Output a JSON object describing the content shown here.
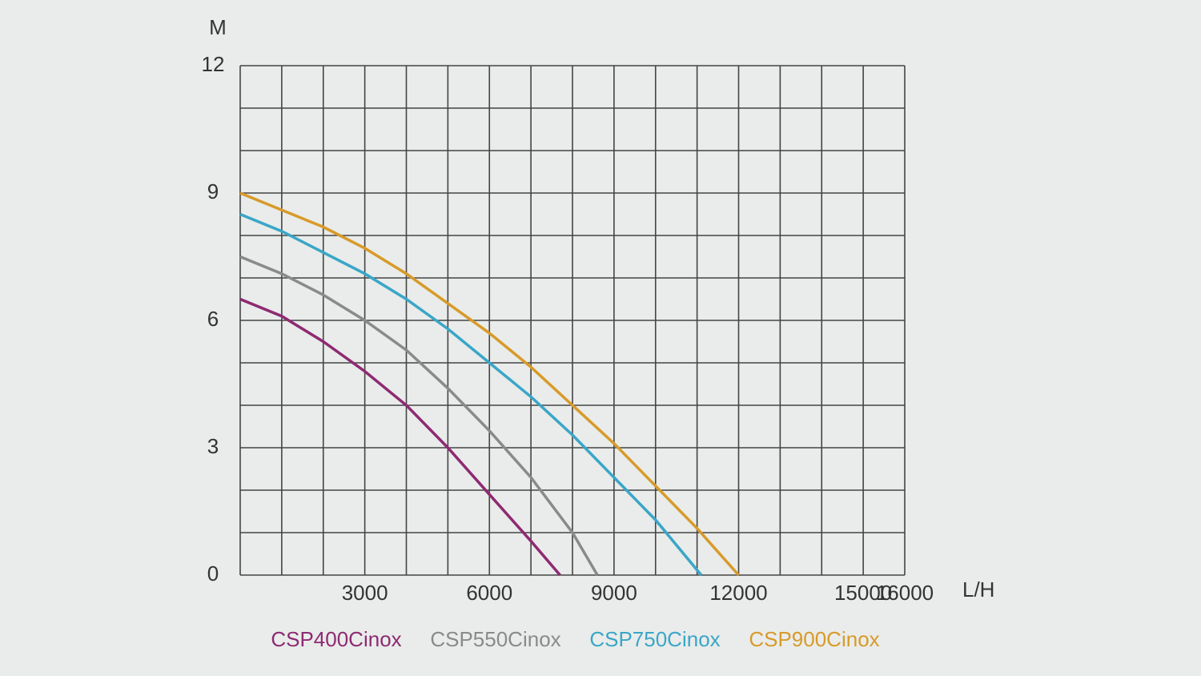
{
  "chart_data": {
    "type": "line",
    "y_axis_label": "M",
    "x_axis_label": "L/H",
    "xlim": [
      0,
      16000
    ],
    "ylim": [
      0,
      12
    ],
    "xticks": [
      3000,
      6000,
      9000,
      12000,
      15000,
      16000
    ],
    "yticks": [
      0,
      3,
      6,
      9,
      12
    ],
    "x_gridlines": [
      0,
      1000,
      2000,
      3000,
      4000,
      5000,
      6000,
      7000,
      8000,
      9000,
      10000,
      11000,
      12000,
      13000,
      14000,
      15000,
      16000
    ],
    "y_gridlines": [
      0,
      1,
      2,
      3,
      4,
      5,
      6,
      7,
      8,
      9,
      10,
      11,
      12
    ],
    "grid": true,
    "series": [
      {
        "name": "CSP400Cinox",
        "color": "#8e2a72",
        "x": [
          0,
          1000,
          2000,
          3000,
          4000,
          5000,
          6000,
          7000,
          7700
        ],
        "values": [
          6.5,
          6.1,
          5.5,
          4.8,
          4.0,
          3.0,
          1.9,
          0.8,
          0
        ]
      },
      {
        "name": "CSP550Cinox",
        "color": "#8a8a8a",
        "x": [
          0,
          1000,
          2000,
          3000,
          4000,
          5000,
          6000,
          7000,
          8000,
          8600
        ],
        "values": [
          7.5,
          7.1,
          6.6,
          6.0,
          5.3,
          4.4,
          3.4,
          2.3,
          1.0,
          0
        ]
      },
      {
        "name": "CSP750Cinox",
        "color": "#3aa6c8",
        "x": [
          0,
          1000,
          2000,
          3000,
          4000,
          5000,
          6000,
          7000,
          8000,
          9000,
          10000,
          11100
        ],
        "values": [
          8.5,
          8.1,
          7.6,
          7.1,
          6.5,
          5.8,
          5.0,
          4.2,
          3.3,
          2.3,
          1.3,
          0
        ]
      },
      {
        "name": "CSP900Cinox",
        "color": "#d89a2a",
        "x": [
          0,
          2000,
          3000,
          4000,
          5000,
          6000,
          7000,
          8000,
          9000,
          10000,
          11000,
          12000
        ],
        "values": [
          9.0,
          8.2,
          7.7,
          7.1,
          6.4,
          5.7,
          4.9,
          4.0,
          3.1,
          2.1,
          1.1,
          0
        ]
      }
    ]
  }
}
